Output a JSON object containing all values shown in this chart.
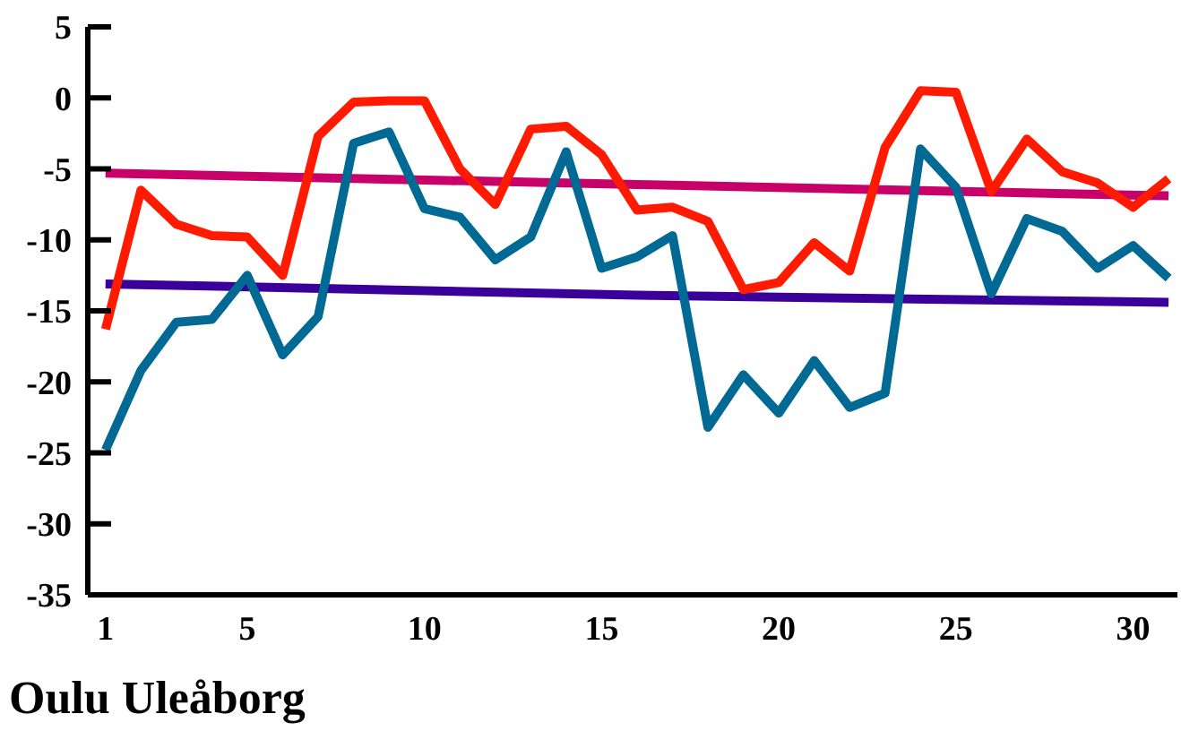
{
  "chart_data": {
    "type": "line",
    "title": "Oulu Uleåborg",
    "x": [
      1,
      2,
      3,
      4,
      5,
      6,
      7,
      8,
      9,
      10,
      11,
      12,
      13,
      14,
      15,
      16,
      17,
      18,
      19,
      20,
      21,
      22,
      23,
      24,
      25,
      26,
      27,
      28,
      29,
      30,
      31
    ],
    "series": [
      {
        "color": "#c8006a",
        "x": [
          1,
          16,
          31
        ],
        "values": [
          -5.3,
          -6.1,
          -6.9
        ]
      },
      {
        "color": "#3a0099",
        "x": [
          1,
          16,
          31
        ],
        "values": [
          -13.1,
          -13.9,
          -14.4
        ]
      },
      {
        "color": "#006a94",
        "values": [
          -24.8,
          -19.2,
          -15.8,
          -15.6,
          -12.5,
          -18.1,
          -15.4,
          -3.2,
          -2.4,
          -7.8,
          -8.4,
          -11.4,
          -9.8,
          -3.8,
          -12,
          -11.2,
          -9.7,
          -23.2,
          -19.5,
          -22.2,
          -18.5,
          -21.8,
          -20.8,
          -3.6,
          -6.3,
          -13.8,
          -8.5,
          -9.4,
          -12,
          -10.4,
          -12.7
        ]
      },
      {
        "color": "#ff1a00",
        "values": [
          -16.3,
          -6.5,
          -8.9,
          -9.7,
          -9.8,
          -12.5,
          -2.7,
          -0.3,
          -0.2,
          -0.2,
          -5,
          -7.5,
          -2.2,
          -2,
          -4,
          -7.9,
          -7.7,
          -8.7,
          -13.5,
          -13,
          -10.2,
          -12.2,
          -3.5,
          0.5,
          0.4,
          -6.6,
          -2.9,
          -5.2,
          -6,
          -7.7,
          -5.7
        ]
      }
    ],
    "xlim": [
      0.5,
      31.25
    ],
    "xticks": [
      1,
      5,
      10,
      15,
      20,
      25,
      30
    ],
    "ylim": [
      -35,
      5
    ],
    "yticks": [
      -35,
      -30,
      -25,
      -20,
      -15,
      -10,
      -5,
      0,
      5
    ],
    "marker": "none",
    "line_style": "solid"
  }
}
